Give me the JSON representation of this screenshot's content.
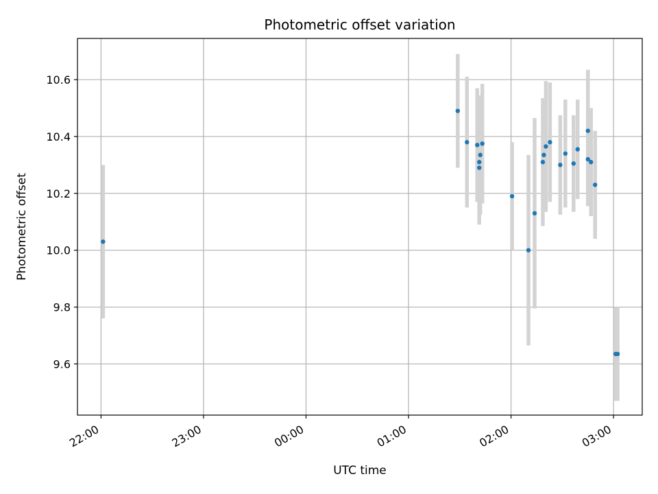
{
  "chart_data": {
    "type": "scatter",
    "title": "Photometric offset variation",
    "xlabel": "UTC time",
    "ylabel": "Photometric offset",
    "grid": true,
    "x_unit": "hours since 00:00 UTC",
    "xlim": [
      -2.23,
      3.28
    ],
    "ylim": [
      9.42,
      10.745
    ],
    "x_ticks": [
      {
        "value": -2,
        "label": "22:00"
      },
      {
        "value": -1,
        "label": "23:00"
      },
      {
        "value": 0,
        "label": "00:00"
      },
      {
        "value": 1,
        "label": "01:00"
      },
      {
        "value": 2,
        "label": "02:00"
      },
      {
        "value": 3,
        "label": "03:00"
      }
    ],
    "y_ticks": [
      {
        "value": 9.6,
        "label": "9.6"
      },
      {
        "value": 9.8,
        "label": "9.8"
      },
      {
        "value": 10.0,
        "label": "10.0"
      },
      {
        "value": 10.2,
        "label": "10.2"
      },
      {
        "value": 10.4,
        "label": "10.4"
      },
      {
        "value": 10.6,
        "label": "10.6"
      }
    ],
    "series": [
      {
        "name": "offset",
        "marker_color": "#1f77b4",
        "errorbar_color": "#d3d3d3",
        "points": [
          {
            "x": -1.98,
            "y": 10.03,
            "err": 0.27
          },
          {
            "x": 1.48,
            "y": 10.49,
            "err": 0.2
          },
          {
            "x": 1.57,
            "y": 10.38,
            "err": 0.23
          },
          {
            "x": 1.67,
            "y": 10.37,
            "err": 0.2
          },
          {
            "x": 1.69,
            "y": 10.31,
            "err": 0.2
          },
          {
            "x": 1.69,
            "y": 10.29,
            "err": 0.2
          },
          {
            "x": 1.7,
            "y": 10.335,
            "err": 0.21
          },
          {
            "x": 1.72,
            "y": 10.375,
            "err": 0.21
          },
          {
            "x": 2.01,
            "y": 10.19,
            "err": 0.19
          },
          {
            "x": 2.17,
            "y": 10.0,
            "err": 0.335
          },
          {
            "x": 2.23,
            "y": 10.13,
            "err": 0.335
          },
          {
            "x": 2.31,
            "y": 10.31,
            "err": 0.225
          },
          {
            "x": 2.32,
            "y": 10.335,
            "err": 0.2
          },
          {
            "x": 2.34,
            "y": 10.365,
            "err": 0.23
          },
          {
            "x": 2.38,
            "y": 10.38,
            "err": 0.21
          },
          {
            "x": 2.48,
            "y": 10.3,
            "err": 0.175
          },
          {
            "x": 2.53,
            "y": 10.34,
            "err": 0.19
          },
          {
            "x": 2.61,
            "y": 10.305,
            "err": 0.17
          },
          {
            "x": 2.65,
            "y": 10.355,
            "err": 0.175
          },
          {
            "x": 2.75,
            "y": 10.32,
            "err": 0.165
          },
          {
            "x": 2.75,
            "y": 10.42,
            "err": 0.215
          },
          {
            "x": 2.78,
            "y": 10.31,
            "err": 0.19
          },
          {
            "x": 2.82,
            "y": 10.23,
            "err": 0.19
          },
          {
            "x": 3.02,
            "y": 9.635,
            "err": 0.165
          },
          {
            "x": 3.04,
            "y": 9.635,
            "err": 0.165
          }
        ]
      }
    ]
  }
}
